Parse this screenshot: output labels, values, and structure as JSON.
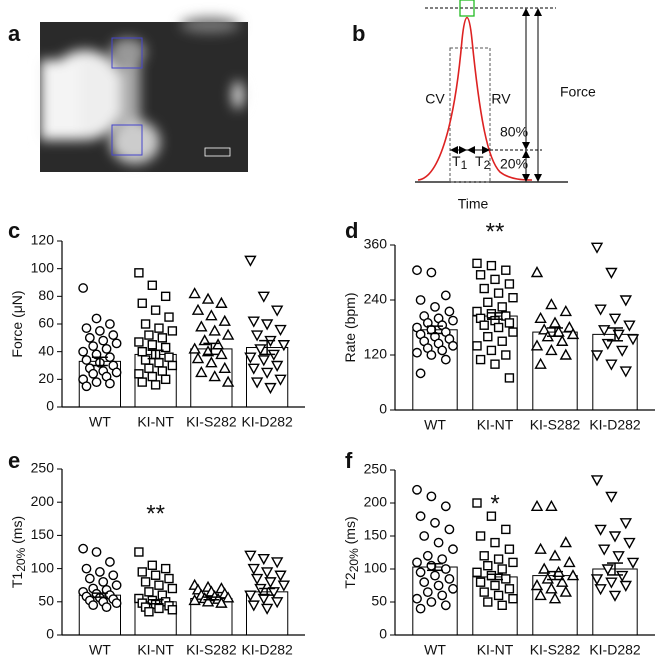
{
  "panel_labels": [
    "a",
    "b",
    "c",
    "d",
    "e",
    "f"
  ],
  "diagram": {
    "cv": "CV",
    "rv": "RV",
    "force": "Force",
    "upper": "80%",
    "lower": "20%",
    "t1": [
      "T",
      "1"
    ],
    "t2": [
      "T",
      "2"
    ],
    "time": "Time"
  },
  "chart_data": [
    {
      "type": "bar",
      "ylabel": [
        "Force (μN)"
      ],
      "categories": [
        "WT",
        "KI-NT",
        "KI-S282",
        "KI-D282"
      ],
      "values": [
        33,
        38,
        42,
        43
      ],
      "errors": [
        3,
        3,
        4,
        5
      ],
      "markers": [
        "circle",
        "square",
        "triangle-up",
        "triangle-down"
      ],
      "points": [
        [
          86,
          64,
          60,
          57,
          55,
          52,
          50,
          48,
          46,
          44,
          42,
          40,
          38,
          36,
          34,
          32,
          30,
          28,
          26,
          25,
          24,
          22,
          20,
          18,
          17,
          15
        ],
        [
          97,
          88,
          80,
          75,
          70,
          65,
          60,
          57,
          55,
          52,
          50,
          47,
          45,
          43,
          40,
          38,
          36,
          34,
          32,
          30,
          28,
          26,
          24,
          22,
          20,
          18,
          16
        ],
        [
          82,
          78,
          75,
          70,
          66,
          62,
          58,
          55,
          52,
          48,
          45,
          42,
          40,
          38,
          35,
          32,
          28,
          25,
          22,
          18
        ],
        [
          106,
          80,
          70,
          62,
          60,
          56,
          52,
          48,
          45,
          42,
          38,
          36,
          34,
          30,
          28,
          25,
          20,
          18,
          14
        ]
      ],
      "ylim": [
        0,
        120
      ],
      "yticks": [
        0,
        20,
        40,
        60,
        80,
        100,
        120
      ]
    },
    {
      "type": "bar",
      "ylabel": [
        "Rate (bpm)"
      ],
      "categories": [
        "WT",
        "KI-NT",
        "KI-S282",
        "KI-D282"
      ],
      "values": [
        175,
        205,
        170,
        165
      ],
      "errors": [
        8,
        7,
        9,
        14
      ],
      "markers": [
        "circle",
        "square",
        "triangle-up",
        "triangle-down"
      ],
      "points": [
        [
          305,
          300,
          250,
          240,
          225,
          215,
          205,
          200,
          195,
          190,
          185,
          180,
          175,
          170,
          165,
          160,
          155,
          150,
          145,
          140,
          135,
          130,
          125,
          120,
          110,
          80
        ],
        [
          320,
          315,
          305,
          295,
          285,
          275,
          265,
          255,
          245,
          235,
          225,
          215,
          210,
          205,
          200,
          195,
          190,
          185,
          180,
          170,
          160,
          150,
          140,
          130,
          120,
          110,
          100,
          70
        ],
        [
          300,
          230,
          215,
          200,
          190,
          180,
          175,
          170,
          165,
          160,
          150,
          140,
          130,
          120,
          100
        ],
        [
          355,
          300,
          240,
          220,
          200,
          185,
          175,
          165,
          155,
          145,
          130,
          120,
          100,
          85
        ]
      ],
      "ylim": [
        0,
        360
      ],
      "yticks": [
        0,
        120,
        240,
        360
      ],
      "annotation": "**",
      "annotation_category": 1
    },
    {
      "type": "bar",
      "ylabel": [
        "T1",
        "20%",
        " (ms)"
      ],
      "categories": [
        "WT",
        "KI-NT",
        "KI-S282",
        "KI-D282"
      ],
      "values": [
        60,
        50,
        55,
        65
      ],
      "errors": [
        3,
        3,
        2,
        5
      ],
      "markers": [
        "circle",
        "square",
        "triangle-up",
        "triangle-down"
      ],
      "points": [
        [
          130,
          125,
          110,
          100,
          95,
          90,
          85,
          80,
          75,
          70,
          68,
          65,
          62,
          60,
          58,
          56,
          54,
          52,
          50,
          48,
          45,
          42
        ],
        [
          125,
          105,
          100,
          95,
          90,
          85,
          80,
          75,
          70,
          65,
          60,
          55,
          52,
          50,
          48,
          46,
          44,
          42,
          40,
          38,
          35
        ],
        [
          75,
          72,
          70,
          68,
          65,
          62,
          60,
          58,
          56,
          55,
          54,
          52,
          50,
          48
        ],
        [
          120,
          115,
          110,
          100,
          95,
          90,
          85,
          80,
          75,
          70,
          65,
          60,
          55,
          50,
          45,
          40
        ]
      ],
      "ylim": [
        0,
        250
      ],
      "yticks": [
        0,
        50,
        100,
        150,
        200,
        250
      ],
      "annotation": "**",
      "annotation_category": 1
    },
    {
      "type": "bar",
      "ylabel": [
        "T2",
        "20%",
        " (ms)"
      ],
      "categories": [
        "WT",
        "KI-NT",
        "KI-S282",
        "KI-D282"
      ],
      "values": [
        103,
        88,
        90,
        100
      ],
      "errors": [
        5,
        4,
        6,
        9
      ],
      "markers": [
        "circle",
        "square",
        "triangle-up",
        "triangle-down"
      ],
      "points": [
        [
          220,
          210,
          195,
          180,
          170,
          160,
          150,
          140,
          130,
          120,
          115,
          110,
          105,
          100,
          95,
          90,
          85,
          80,
          75,
          70,
          65,
          60,
          55,
          50,
          45,
          40
        ],
        [
          200,
          180,
          160,
          150,
          140,
          130,
          120,
          115,
          110,
          105,
          100,
          95,
          90,
          85,
          80,
          75,
          70,
          65,
          60,
          55,
          50,
          45
        ],
        [
          195,
          195,
          140,
          130,
          120,
          110,
          100,
          95,
          90,
          85,
          80,
          75,
          70,
          65,
          60,
          55
        ],
        [
          235,
          210,
          170,
          160,
          150,
          140,
          130,
          120,
          110,
          100,
          90,
          85,
          80,
          75,
          70,
          60
        ]
      ],
      "ylim": [
        0,
        250
      ],
      "yticks": [
        0,
        50,
        100,
        150,
        200,
        250
      ],
      "annotation": "*",
      "annotation_category": 1
    }
  ]
}
